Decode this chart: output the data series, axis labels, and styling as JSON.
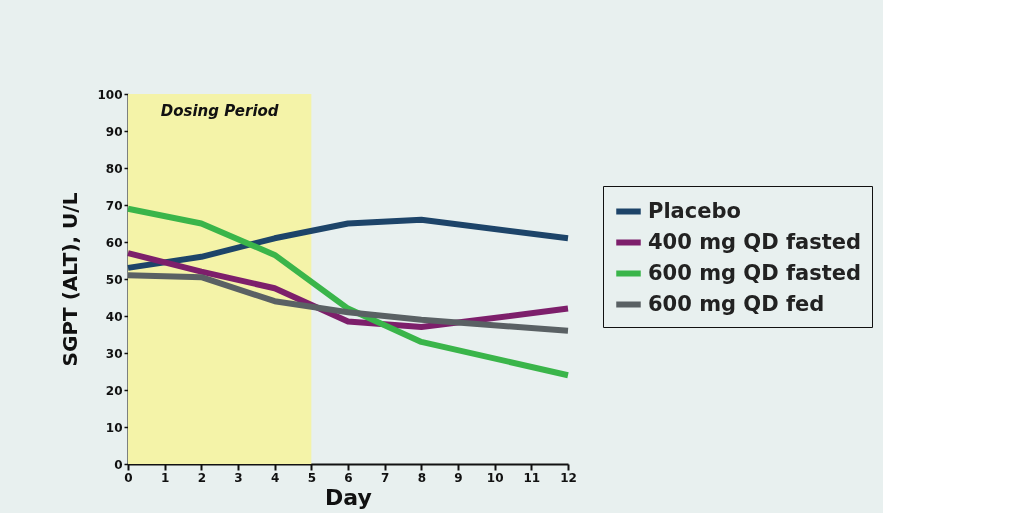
{
  "chart_data": {
    "type": "line",
    "xlabel": "Day",
    "ylabel": "SGPT (ALT), U/L",
    "x": [
      0,
      2,
      4,
      6,
      8,
      12
    ],
    "series": [
      {
        "name": "Placebo",
        "color": "#1d4469",
        "values": [
          53,
          56,
          61,
          65,
          66,
          61
        ]
      },
      {
        "name": "400 mg QD fasted",
        "color": "#7d1f6b",
        "values": [
          57,
          52,
          47.5,
          38.5,
          37,
          42
        ]
      },
      {
        "name": "600 mg QD fasted",
        "color": "#3ab54a",
        "values": [
          69,
          65,
          56.5,
          42,
          33,
          24
        ]
      },
      {
        "name": "600 mg QD fed",
        "color": "#5a6164",
        "values": [
          51,
          50.5,
          44,
          41,
          39,
          36
        ]
      }
    ],
    "xlim": [
      0,
      12
    ],
    "xticks": [
      0,
      1,
      2,
      3,
      4,
      5,
      6,
      7,
      8,
      9,
      10,
      11,
      12
    ],
    "ylim": [
      0,
      100
    ],
    "yticks": [
      0,
      10,
      20,
      30,
      40,
      50,
      60,
      70,
      80,
      90,
      100
    ],
    "bands": [
      {
        "axis": "x",
        "from": 0,
        "to": 5,
        "label": "Dosing Period",
        "color": "#f4f3a8"
      }
    ],
    "grid": false,
    "legend": "right",
    "marker": "none",
    "line_style": "solid"
  }
}
